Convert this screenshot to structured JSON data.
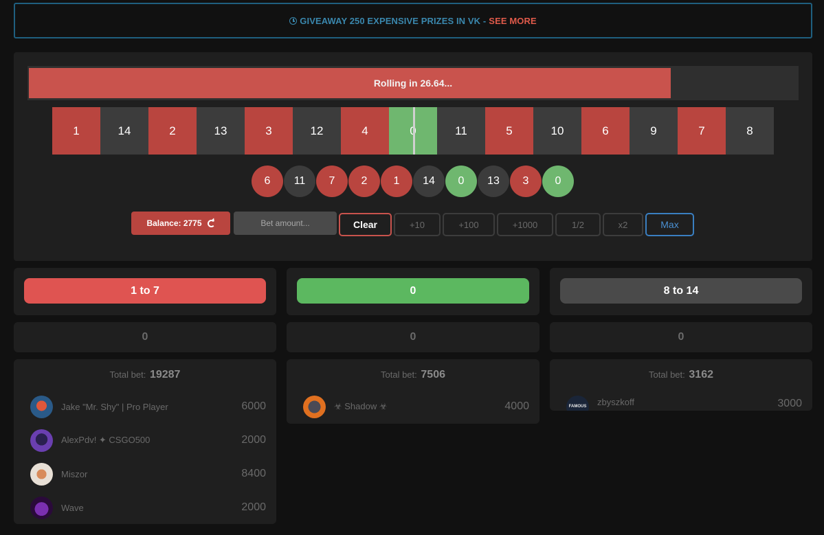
{
  "banner": {
    "text": "GIVEAWAY 250 EXPENSIVE PRIZES IN VK -",
    "link": "SEE MORE"
  },
  "progress": {
    "label": "Rolling in 26.64...",
    "fraction": 0.835
  },
  "strip": [
    {
      "n": "1",
      "c": "red"
    },
    {
      "n": "14",
      "c": "black"
    },
    {
      "n": "2",
      "c": "red"
    },
    {
      "n": "13",
      "c": "black"
    },
    {
      "n": "3",
      "c": "red"
    },
    {
      "n": "12",
      "c": "black"
    },
    {
      "n": "4",
      "c": "red"
    },
    {
      "n": "0",
      "c": "green"
    },
    {
      "n": "11",
      "c": "black"
    },
    {
      "n": "5",
      "c": "red"
    },
    {
      "n": "10",
      "c": "black"
    },
    {
      "n": "6",
      "c": "red"
    },
    {
      "n": "9",
      "c": "black"
    },
    {
      "n": "7",
      "c": "red"
    },
    {
      "n": "8",
      "c": "black"
    }
  ],
  "history": [
    {
      "n": "6",
      "c": "red"
    },
    {
      "n": "11",
      "c": "black"
    },
    {
      "n": "7",
      "c": "red"
    },
    {
      "n": "2",
      "c": "red"
    },
    {
      "n": "1",
      "c": "red"
    },
    {
      "n": "14",
      "c": "black"
    },
    {
      "n": "0",
      "c": "green"
    },
    {
      "n": "13",
      "c": "black"
    },
    {
      "n": "3",
      "c": "red"
    },
    {
      "n": "0",
      "c": "green"
    }
  ],
  "controls": {
    "balance_label": "Balance: 2775",
    "bet_placeholder": "Bet amount...",
    "clear": "Clear",
    "plus10": "+10",
    "plus100": "+100",
    "plus1000": "+1000",
    "half": "1/2",
    "double": "x2",
    "max": "Max"
  },
  "columns": [
    {
      "button": "1 to 7",
      "my_bet": "0",
      "total_label": "Total bet:",
      "total": "19287",
      "players": [
        {
          "name": "Jake \"Mr. Shy\" | Pro Player",
          "amount": "6000"
        },
        {
          "name": "AlexPdv! ✦ CSGO500",
          "amount": "2000"
        },
        {
          "name": "Miszor",
          "amount": "8400"
        },
        {
          "name": "Wave",
          "amount": "2000"
        }
      ]
    },
    {
      "button": "0",
      "my_bet": "0",
      "total_label": "Total bet:",
      "total": "7506",
      "players": [
        {
          "name": "☣ Shadow ☣",
          "amount": "4000"
        }
      ]
    },
    {
      "button": "8 to 14",
      "my_bet": "0",
      "total_label": "Total bet:",
      "total": "3162",
      "players": [
        {
          "name": "zbyszkoff",
          "amount": "3000",
          "avatar_text": "FAMOUS"
        }
      ]
    }
  ]
}
